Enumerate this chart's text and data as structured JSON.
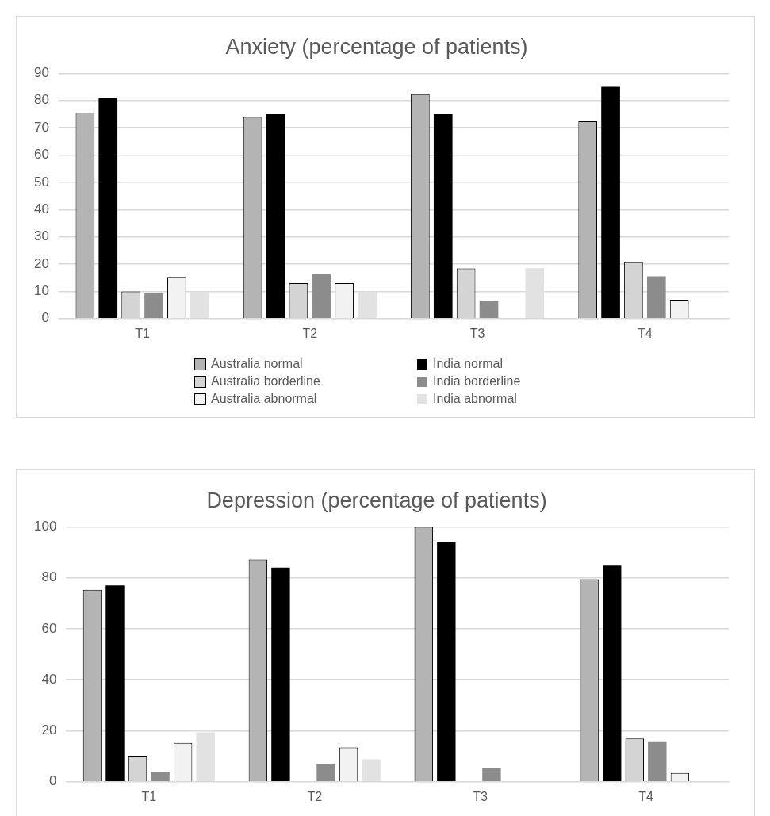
{
  "chart_data": [
    {
      "type": "bar",
      "title": "Anxiety (percentage of patients)",
      "categories": [
        "T1",
        "T2",
        "T3",
        "T4"
      ],
      "ylim": [
        0,
        90
      ],
      "yticks": [
        0,
        10,
        20,
        30,
        40,
        50,
        60,
        70,
        80,
        90
      ],
      "grid": "y",
      "legend": "bottom",
      "series": [
        {
          "name": "Australia normal",
          "color": "#b4b4b4",
          "values": [
            75.5,
            74,
            82.3,
            72.4
          ]
        },
        {
          "name": "India normal",
          "color": "#000000",
          "values": [
            81,
            75,
            75,
            85
          ]
        },
        {
          "name": "Australia borderline",
          "color": "#d4d4d4",
          "values": [
            10,
            13,
            18.4,
            20.7
          ]
        },
        {
          "name": "India borderline",
          "color": "#8c8c8c",
          "values": [
            9.4,
            16.3,
            6.4,
            15.5
          ]
        },
        {
          "name": "Australia abnormal",
          "color": "#f2f2f2",
          "values": [
            15.3,
            13,
            0,
            6.9
          ]
        },
        {
          "name": "India abnormal",
          "color": "#e2e2e2",
          "values": [
            9.8,
            9.8,
            18.5,
            0
          ]
        }
      ]
    },
    {
      "type": "bar",
      "title": "Depression (percentage of patients)",
      "categories": [
        "T1",
        "T2",
        "T3",
        "T4"
      ],
      "ylim": [
        0,
        100
      ],
      "yticks": [
        0,
        20,
        40,
        60,
        80,
        100
      ],
      "grid": "y",
      "series": [
        {
          "color": "#b4b4b4",
          "values": [
            75.3,
            87.2,
            100,
            79.4
          ]
        },
        {
          "color": "#000000",
          "values": [
            77,
            84,
            94.2,
            84.8
          ]
        },
        {
          "color": "#d4d4d4",
          "values": [
            10.2,
            0,
            0,
            17
          ]
        },
        {
          "color": "#8c8c8c",
          "values": [
            3.7,
            7.1,
            5.4,
            15.6
          ]
        },
        {
          "color": "#f2f2f2",
          "values": [
            15.3,
            13.5,
            0,
            3.4
          ]
        },
        {
          "color": "#e2e2e2",
          "values": [
            19.4,
            8.8,
            0,
            0
          ]
        }
      ]
    }
  ]
}
